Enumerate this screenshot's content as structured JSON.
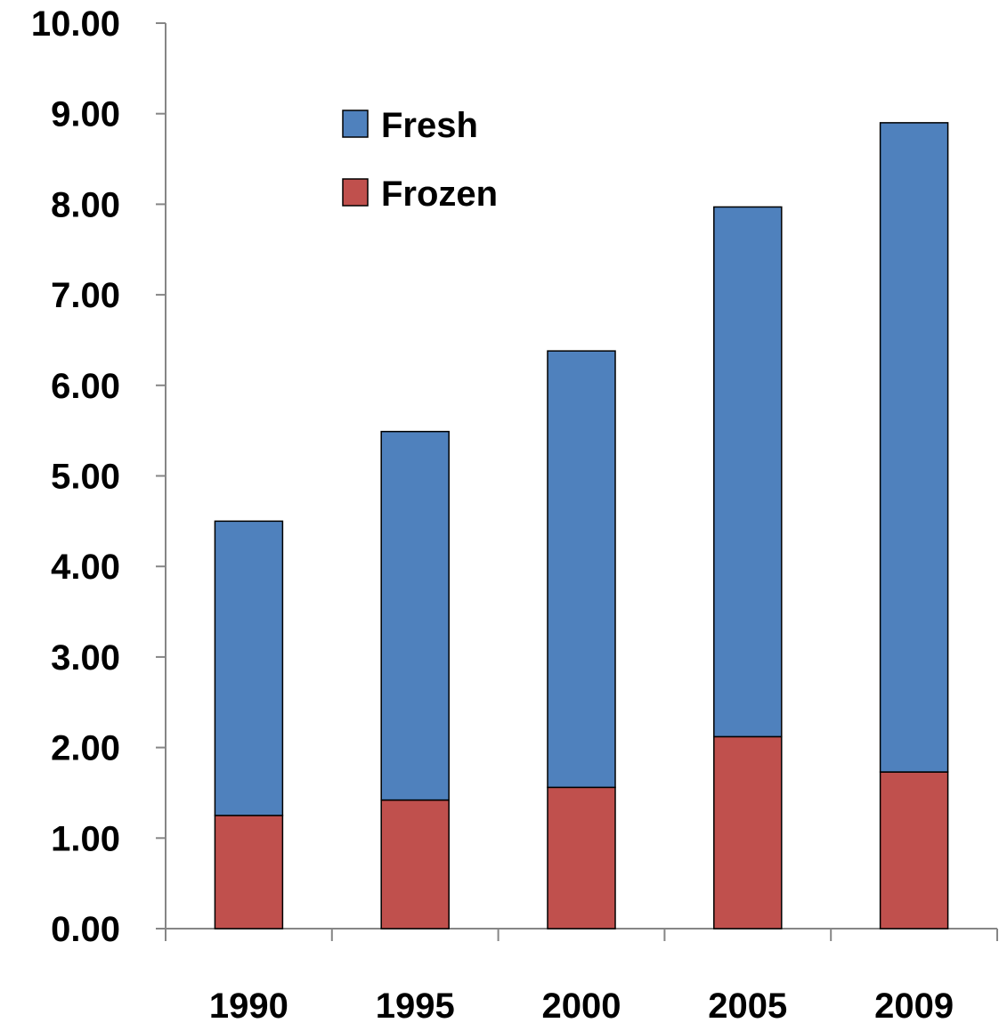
{
  "chart_data": {
    "type": "bar",
    "stacked": true,
    "categories": [
      "1990",
      "1995",
      "2000",
      "2005",
      "2009"
    ],
    "series": [
      {
        "name": "Frozen",
        "color": "#C0504D",
        "values": [
          1.25,
          1.42,
          1.56,
          2.12,
          1.73
        ]
      },
      {
        "name": "Fresh",
        "color": "#4F81BD",
        "values": [
          3.25,
          4.07,
          4.82,
          5.85,
          7.17
        ]
      }
    ],
    "y_ticks": [
      "0.00",
      "1.00",
      "2.00",
      "3.00",
      "4.00",
      "5.00",
      "6.00",
      "7.00",
      "8.00",
      "9.00",
      "10.00"
    ],
    "ylim": [
      0,
      10
    ],
    "legend_order": [
      "Fresh",
      "Frozen"
    ],
    "legend_position": "top-left inside plot",
    "grid": false,
    "title": "",
    "xlabel": "",
    "ylabel": ""
  }
}
